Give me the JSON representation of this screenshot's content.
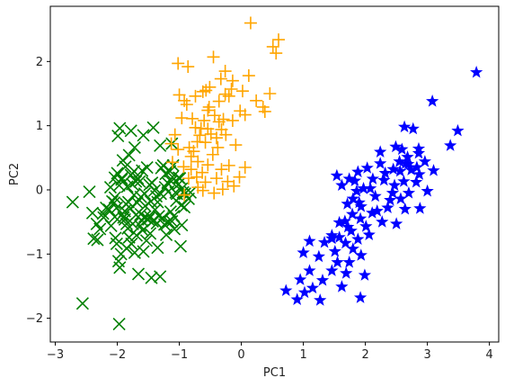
{
  "chart_data": {
    "type": "scatter",
    "title": "",
    "xlabel": "PC1",
    "ylabel": "PC2",
    "xlim": [
      -3.08,
      4.15
    ],
    "ylim": [
      -2.37,
      2.86
    ],
    "xticks": [
      -3,
      -2,
      -1,
      0,
      1,
      2,
      3,
      4
    ],
    "xtick_labels": [
      "−3",
      "−2",
      "−1",
      "0",
      "1",
      "2",
      "3",
      "4"
    ],
    "yticks": [
      -2,
      -1,
      0,
      1,
      2
    ],
    "ytick_labels": [
      "−2",
      "−1",
      "0",
      "1",
      "2"
    ],
    "grid": false,
    "legend": "none",
    "series": [
      {
        "marker": "x",
        "color": "#008000",
        "points": [
          [
            -2.56,
            -1.77
          ],
          [
            -1.97,
            -2.09
          ],
          [
            -2.72,
            -0.19
          ],
          [
            -2.4,
            -0.36
          ],
          [
            -2.45,
            -0.03
          ],
          [
            -2.33,
            -0.53
          ],
          [
            -2.22,
            -0.43
          ],
          [
            -2.38,
            -0.76
          ],
          [
            -2.32,
            -0.78
          ],
          [
            -2.28,
            -0.61
          ],
          [
            -2.23,
            -0.37
          ],
          [
            -2.18,
            -0.28
          ],
          [
            -2.13,
            -0.31
          ],
          [
            -2.1,
            -0.56
          ],
          [
            -2.08,
            -0.18
          ],
          [
            -2.05,
            -0.2
          ],
          [
            -2.04,
            -0.12
          ],
          [
            -2.03,
            -0.75
          ],
          [
            -2.01,
            -0.84
          ],
          [
            -1.98,
            -1.11
          ],
          [
            -1.96,
            -1.21
          ],
          [
            -1.94,
            -1.0
          ],
          [
            -1.92,
            -0.38
          ],
          [
            -1.9,
            -0.43
          ],
          [
            -1.88,
            -0.33
          ],
          [
            -1.86,
            -0.22
          ],
          [
            -1.85,
            -0.53
          ],
          [
            -1.84,
            0.05
          ],
          [
            -1.83,
            -0.6
          ],
          [
            -1.81,
            -0.74
          ],
          [
            -1.79,
            -0.29
          ],
          [
            -1.77,
            -0.84
          ],
          [
            -1.75,
            -0.53
          ],
          [
            -1.72,
            -0.98
          ],
          [
            -1.7,
            -0.39
          ],
          [
            -1.69,
            -0.71
          ],
          [
            -1.66,
            -1.31
          ],
          [
            -1.63,
            -0.56
          ],
          [
            -1.62,
            -0.38
          ],
          [
            -1.6,
            -0.48
          ],
          [
            -1.58,
            -0.96
          ],
          [
            -1.56,
            -0.42
          ],
          [
            -1.53,
            -0.79
          ],
          [
            -1.5,
            -0.46
          ],
          [
            -1.47,
            -0.42
          ],
          [
            -1.45,
            -1.37
          ],
          [
            -1.43,
            -0.49
          ],
          [
            -1.41,
            -0.47
          ],
          [
            -1.39,
            -0.31
          ],
          [
            -1.36,
            -0.52
          ],
          [
            -1.33,
            -0.41
          ],
          [
            -1.31,
            -1.35
          ],
          [
            -1.27,
            -0.44
          ],
          [
            -1.24,
            -0.54
          ],
          [
            -1.21,
            -0.7
          ],
          [
            -1.17,
            -0.5
          ],
          [
            -1.14,
            -0.34
          ],
          [
            -1.12,
            -0.49
          ],
          [
            -1.09,
            -0.41
          ],
          [
            -1.08,
            -0.61
          ],
          [
            -1.05,
            -0.17
          ],
          [
            -0.98,
            -0.88
          ],
          [
            -0.97,
            -0.24
          ],
          [
            -0.94,
            -0.04
          ],
          [
            -0.91,
            -0.06
          ],
          [
            -0.85,
            -0.14
          ],
          [
            -0.82,
            -0.04
          ],
          [
            -1.23,
            0.04
          ],
          [
            -1.19,
            0.11
          ],
          [
            -1.11,
            0.2
          ],
          [
            -2.11,
            0.04
          ],
          [
            -2.04,
            0.19
          ],
          [
            -2.0,
            0.26
          ],
          [
            -1.97,
            0.07
          ],
          [
            -1.93,
            0.18
          ],
          [
            -1.91,
            0.46
          ],
          [
            -1.87,
            0.36
          ],
          [
            -1.81,
            0.54
          ],
          [
            -1.78,
            0.23
          ],
          [
            -1.76,
            0.09
          ],
          [
            -1.73,
            0.29
          ],
          [
            -1.7,
            0.13
          ],
          [
            -1.67,
            0.18
          ],
          [
            -1.64,
            0.13
          ],
          [
            -1.6,
            0.3
          ],
          [
            -1.56,
            -0.06
          ],
          [
            -1.52,
            0.35
          ],
          [
            -1.48,
            0.08
          ],
          [
            -1.44,
            0.11
          ],
          [
            -1.4,
            -0.01
          ],
          [
            -1.37,
            -0.1
          ],
          [
            -1.35,
            -0.19
          ],
          [
            -1.3,
            -0.06
          ],
          [
            -1.29,
            0.34
          ],
          [
            -1.26,
            0.38
          ],
          [
            -1.22,
            0.25
          ],
          [
            -1.18,
            -0.03
          ],
          [
            -1.15,
            0.29
          ],
          [
            -1.13,
            0.13
          ],
          [
            -1.1,
            0.38
          ],
          [
            -1.06,
            -0.04
          ],
          [
            -1.01,
            0.09
          ],
          [
            -0.99,
            0.18
          ],
          [
            -0.96,
            0.02
          ],
          [
            -1.04,
            -0.06
          ],
          [
            -1.96,
            0.96
          ],
          [
            -1.99,
            0.84
          ],
          [
            -1.78,
            0.92
          ],
          [
            -1.72,
            0.66
          ],
          [
            -1.58,
            0.85
          ],
          [
            -1.42,
            0.97
          ],
          [
            -1.31,
            0.69
          ],
          [
            -1.12,
            0.72
          ],
          [
            -1.01,
            0.19
          ],
          [
            -1.93,
            0.16
          ],
          [
            -1.88,
            -0.46
          ],
          [
            -1.82,
            -0.19
          ],
          [
            -1.73,
            -0.08
          ],
          [
            -1.68,
            -0.2
          ],
          [
            -1.62,
            -0.11
          ],
          [
            -2.01,
            -0.28
          ],
          [
            -1.59,
            -0.63
          ],
          [
            -1.47,
            -0.68
          ],
          [
            -1.35,
            -0.9
          ],
          [
            -2.04,
            -0.42
          ],
          [
            -1.55,
            -0.25
          ],
          [
            -1.46,
            -0.18
          ],
          [
            -1.85,
            -0.91
          ],
          [
            -0.96,
            -0.55
          ],
          [
            -0.92,
            -0.27
          ]
        ]
      },
      {
        "marker": "plus",
        "color": "#ffa500",
        "points": [
          [
            0.15,
            2.6
          ],
          [
            0.6,
            2.34
          ],
          [
            0.56,
            2.13
          ],
          [
            0.51,
            2.23
          ],
          [
            0.12,
            1.78
          ],
          [
            -0.26,
            1.85
          ],
          [
            -0.45,
            2.07
          ],
          [
            -0.86,
            1.92
          ],
          [
            -1.02,
            1.97
          ],
          [
            -0.33,
            1.73
          ],
          [
            -0.14,
            1.7
          ],
          [
            -0.16,
            1.57
          ],
          [
            -0.51,
            1.6
          ],
          [
            -0.57,
            1.55
          ],
          [
            -0.74,
            1.46
          ],
          [
            -0.92,
            1.39
          ],
          [
            -0.54,
            1.24
          ],
          [
            -0.26,
            1.49
          ],
          [
            0.02,
            1.54
          ],
          [
            0.24,
            1.39
          ],
          [
            0.46,
            1.5
          ],
          [
            0.35,
            1.29
          ],
          [
            0.38,
            1.22
          ],
          [
            0.06,
            1.17
          ],
          [
            -0.02,
            1.23
          ],
          [
            -0.36,
            1.38
          ],
          [
            -1.0,
            1.48
          ],
          [
            -0.88,
            1.33
          ],
          [
            -0.96,
            1.12
          ],
          [
            -0.79,
            1.11
          ],
          [
            -0.6,
            1.08
          ],
          [
            -0.36,
            1.06
          ],
          [
            -0.14,
            1.08
          ],
          [
            -0.32,
            0.94
          ],
          [
            -0.54,
            0.95
          ],
          [
            -0.74,
            0.97
          ],
          [
            -0.49,
            0.87
          ],
          [
            -0.4,
            0.81
          ],
          [
            -0.58,
            0.74
          ],
          [
            -0.71,
            0.75
          ],
          [
            -0.09,
            0.7
          ],
          [
            -1.07,
            0.86
          ],
          [
            -1.13,
            0.72
          ],
          [
            -1.02,
            0.63
          ],
          [
            -0.84,
            0.66
          ],
          [
            -0.7,
            0.44
          ],
          [
            -0.54,
            0.39
          ],
          [
            -0.63,
            0.27
          ],
          [
            -0.81,
            0.32
          ],
          [
            -0.93,
            0.36
          ],
          [
            -1.11,
            0.43
          ],
          [
            -0.85,
            0.18
          ],
          [
            -0.72,
            0.2
          ],
          [
            -0.58,
            0.12
          ],
          [
            -0.32,
            0.32
          ],
          [
            -0.22,
            0.13
          ],
          [
            -0.3,
            0.01
          ],
          [
            -0.44,
            -0.05
          ],
          [
            -0.7,
            0.04
          ],
          [
            -0.92,
            -0.08
          ],
          [
            -0.2,
            0.38
          ],
          [
            -0.03,
            0.2
          ],
          [
            0.06,
            0.35
          ],
          [
            -0.62,
            -0.01
          ],
          [
            -0.4,
            0.18
          ],
          [
            -0.12,
            0.06
          ],
          [
            -0.77,
            0.6
          ],
          [
            -0.25,
            0.86
          ],
          [
            -0.46,
            0.55
          ],
          [
            -0.67,
            0.85
          ],
          [
            -0.81,
            0.52
          ],
          [
            -0.38,
            0.66
          ],
          [
            -0.29,
            1.1
          ],
          [
            -0.62,
            1.53
          ],
          [
            -0.52,
            1.29
          ],
          [
            -0.43,
            1.16
          ],
          [
            -0.2,
            1.46
          ],
          [
            -0.65,
            0.96
          ]
        ]
      },
      {
        "marker": "star",
        "color": "#0000ff",
        "points": [
          [
            3.79,
            1.83
          ],
          [
            3.08,
            1.38
          ],
          [
            3.49,
            0.92
          ],
          [
            2.63,
            0.98
          ],
          [
            2.59,
            0.63
          ],
          [
            2.77,
            0.95
          ],
          [
            2.86,
            0.64
          ],
          [
            3.37,
            0.69
          ],
          [
            2.65,
            0.41
          ],
          [
            2.49,
            0.67
          ],
          [
            2.24,
            0.59
          ],
          [
            2.45,
            0.32
          ],
          [
            2.83,
            0.35
          ],
          [
            3.1,
            0.3
          ],
          [
            2.32,
            0.26
          ],
          [
            2.03,
            0.34
          ],
          [
            1.88,
            0.28
          ],
          [
            2.12,
            0.17
          ],
          [
            1.74,
            0.17
          ],
          [
            1.54,
            0.22
          ],
          [
            2.24,
            0.41
          ],
          [
            2.56,
            0.29
          ],
          [
            2.87,
            0.24
          ],
          [
            2.96,
            0.44
          ],
          [
            3.0,
            -0.02
          ],
          [
            2.7,
            -0.05
          ],
          [
            2.47,
            0.07
          ],
          [
            2.3,
            0.15
          ],
          [
            2.08,
            0.02
          ],
          [
            1.83,
            0.14
          ],
          [
            1.62,
            0.07
          ],
          [
            1.86,
            -0.02
          ],
          [
            2.16,
            -0.1
          ],
          [
            2.44,
            -0.05
          ],
          [
            2.62,
            0.13
          ],
          [
            2.82,
            0.12
          ],
          [
            2.88,
            -0.29
          ],
          [
            2.64,
            -0.3
          ],
          [
            2.36,
            -0.28
          ],
          [
            2.11,
            -0.36
          ],
          [
            1.93,
            -0.26
          ],
          [
            1.71,
            -0.22
          ],
          [
            1.67,
            -0.49
          ],
          [
            1.92,
            -0.45
          ],
          [
            2.19,
            -0.33
          ],
          [
            2.5,
            -0.53
          ],
          [
            2.27,
            -0.5
          ],
          [
            2.01,
            -0.57
          ],
          [
            1.77,
            -0.64
          ],
          [
            1.58,
            -0.51
          ],
          [
            1.46,
            -0.76
          ],
          [
            1.68,
            -0.83
          ],
          [
            1.88,
            -0.77
          ],
          [
            2.06,
            -0.7
          ],
          [
            1.8,
            -0.92
          ],
          [
            1.51,
            -0.96
          ],
          [
            1.34,
            -0.82
          ],
          [
            1.55,
            -1.13
          ],
          [
            1.74,
            -1.13
          ],
          [
            1.93,
            -1.02
          ],
          [
            1.99,
            -1.33
          ],
          [
            1.69,
            -1.3
          ],
          [
            1.46,
            -1.26
          ],
          [
            1.25,
            -1.04
          ],
          [
            1.0,
            -0.98
          ],
          [
            1.1,
            -1.26
          ],
          [
            1.31,
            -1.41
          ],
          [
            1.15,
            -1.53
          ],
          [
            0.95,
            -1.4
          ],
          [
            1.02,
            -1.6
          ],
          [
            0.72,
            -1.57
          ],
          [
            0.9,
            -1.71
          ],
          [
            1.27,
            -1.72
          ],
          [
            1.62,
            -1.51
          ],
          [
            1.92,
            -1.68
          ],
          [
            1.1,
            -0.8
          ],
          [
            1.58,
            -0.74
          ],
          [
            1.72,
            -0.58
          ],
          [
            1.79,
            -0.38
          ],
          [
            2.4,
            -0.16
          ],
          [
            2.55,
            0.44
          ],
          [
            2.68,
            0.51
          ],
          [
            2.74,
            0.31
          ],
          [
            2.57,
            -0.14
          ],
          [
            1.97,
            0.02
          ],
          [
            2.86,
            0.57
          ],
          [
            1.46,
            -0.71
          ],
          [
            1.8,
            -0.14
          ],
          [
            2.69,
            0.4
          ],
          [
            1.9,
            -0.2
          ]
        ]
      }
    ]
  }
}
